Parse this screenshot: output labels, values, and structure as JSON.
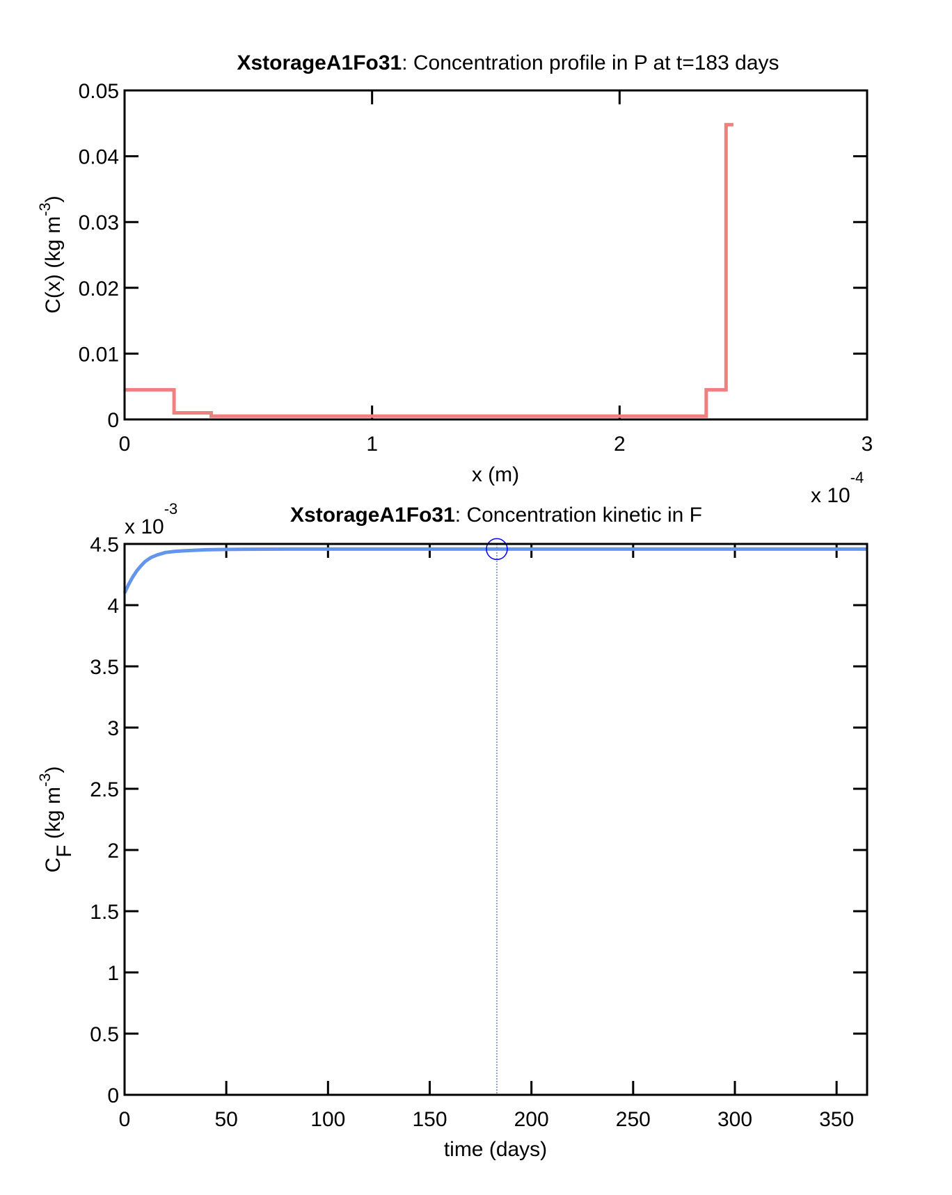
{
  "colors": {
    "profile_line": "#ee8080",
    "kinetic_line": "#6495ed",
    "marker": "#0000ff",
    "background": "#ffffff",
    "axis": "#000000"
  },
  "chart_data": [
    {
      "type": "line",
      "title_bold": "XstorageA1Fo31",
      "title_rest": ": Concentration profile in P at t=183 days",
      "xlabel": "x (m)",
      "ylabel_main": "C(x) (kg m",
      "ylabel_sup": "-3",
      "ylabel_end": ")",
      "x_multiplier": {
        "base": "x 10",
        "exp": "-4"
      },
      "xlim": [
        0,
        3
      ],
      "ylim": [
        0,
        0.05
      ],
      "xticks": [
        0,
        1,
        2,
        3
      ],
      "xtick_labels": [
        "0",
        "1",
        "2",
        "3"
      ],
      "yticks": [
        0,
        0.01,
        0.02,
        0.03,
        0.04,
        0.05
      ],
      "ytick_labels": [
        "0",
        "0.01",
        "0.02",
        "0.03",
        "0.04",
        "0.05"
      ],
      "grid": false,
      "series": [
        {
          "step": true,
          "x": [
            0,
            0.2,
            0.2,
            0.35,
            0.35,
            2.35,
            2.35,
            2.43,
            2.43,
            2.46
          ],
          "y": [
            0.0045,
            0.0045,
            0.001,
            0.001,
            0.0005,
            0.0005,
            0.0045,
            0.0045,
            0.0448,
            0.0448
          ]
        }
      ]
    },
    {
      "type": "line",
      "title_bold": "XstorageA1Fo31",
      "title_rest": ": Concentration kinetic in F",
      "xlabel": "time (days)",
      "ylabel_main": "C",
      "ylabel_sub": "F",
      "ylabel_mid": " (kg m",
      "ylabel_sup": "-3",
      "ylabel_end": ")",
      "y_multiplier": {
        "base": "x 10",
        "exp": "-3"
      },
      "xlim": [
        0,
        365
      ],
      "ylim": [
        0,
        4.5
      ],
      "xticks": [
        0,
        50,
        100,
        150,
        200,
        250,
        300,
        350
      ],
      "xtick_labels": [
        "0",
        "50",
        "100",
        "150",
        "200",
        "250",
        "300",
        "350"
      ],
      "yticks": [
        0,
        0.5,
        1,
        1.5,
        2,
        2.5,
        3,
        3.5,
        4,
        4.5
      ],
      "ytick_labels": [
        "0",
        "0.5",
        "1",
        "1.5",
        "2",
        "2.5",
        "3",
        "3.5",
        "4",
        "4.5"
      ],
      "grid": false,
      "series": [
        {
          "x": [
            0,
            2,
            4,
            6,
            8,
            10,
            13,
            16,
            20,
            25,
            30,
            40,
            50,
            60,
            80,
            100,
            150,
            200,
            250,
            300,
            365
          ],
          "y": [
            4.1,
            4.17,
            4.23,
            4.28,
            4.32,
            4.355,
            4.39,
            4.41,
            4.43,
            4.44,
            4.445,
            4.452,
            4.455,
            4.457,
            4.458,
            4.458,
            4.458,
            4.458,
            4.458,
            4.458,
            4.458
          ]
        }
      ],
      "marker": {
        "x": 183,
        "y": 4.458
      },
      "cursor_line_x": 183
    }
  ]
}
